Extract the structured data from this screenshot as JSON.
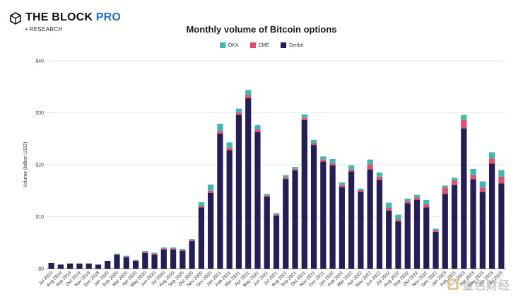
{
  "header": {
    "brand": "THE BLOCK",
    "brand_pro": "PRO",
    "sub": "• RESEARCH"
  },
  "watermark": {
    "text": "金色财经"
  },
  "colors": {
    "okx": "#3fb8b0",
    "cme": "#e0506e",
    "deribit": "#241d57"
  },
  "chart_data": {
    "type": "bar",
    "stacked": true,
    "title": "Monthly volume of Bitcoin options",
    "xlabel": "",
    "ylabel": "Volume (billion USD)",
    "ylim": [
      0,
      40
    ],
    "yticks": [
      "$0",
      "$10",
      "$20",
      "$30",
      "$40"
    ],
    "legend_position": "top-center",
    "grid": "horizontal",
    "categories": [
      "Jul 2019",
      "Aug 2019",
      "Sep 2019",
      "Oct 2019",
      "Nov 2019",
      "Dec 2019",
      "Jan 2020",
      "Feb 2020",
      "Mar 2020",
      "Apr 2020",
      "May 2020",
      "Jun 2020",
      "Jul 2020",
      "Aug 2020",
      "Sep 2020",
      "Oct 2020",
      "Nov 2020",
      "Dec 2020",
      "Jan 2021",
      "Feb 2021",
      "Mar 2021",
      "Apr 2021",
      "May 2021",
      "Jun 2021",
      "Jul 2021",
      "Aug 2021",
      "Sep 2021",
      "Oct 2021",
      "Nov 2021",
      "Dec 2021",
      "Jan 2022",
      "Feb 2022",
      "Mar 2022",
      "Apr 2022",
      "May 2022",
      "Jun 2022",
      "Jul 2022",
      "Aug 2022",
      "Sep 2022",
      "Oct 2022",
      "Nov 2022",
      "Dec 2022",
      "Jan 2023",
      "Feb 2023",
      "Mar 2023",
      "Apr 2023",
      "May 2023",
      "Jun 2023",
      "Jul 2023"
    ],
    "series": [
      {
        "name": "Deribit",
        "values": [
          1.1,
          0.8,
          1.0,
          1.0,
          1.0,
          0.8,
          1.5,
          2.7,
          2.2,
          1.5,
          3.0,
          2.7,
          3.7,
          3.7,
          3.4,
          5.3,
          11.8,
          14.6,
          26.0,
          22.8,
          29.6,
          32.8,
          26.3,
          13.9,
          10.2,
          17.3,
          18.9,
          28.6,
          23.8,
          20.6,
          19.9,
          15.7,
          18.7,
          14.8,
          19.1,
          17.1,
          11.2,
          9.1,
          12.6,
          13.2,
          11.8,
          7.1,
          14.4,
          16.1,
          27.0,
          17.2,
          14.8,
          20.2,
          16.4
        ]
      },
      {
        "name": "CME",
        "values": [
          0,
          0,
          0,
          0,
          0,
          0,
          0,
          0.1,
          0.1,
          0.1,
          0.2,
          0.2,
          0.2,
          0.2,
          0.2,
          0.2,
          0.3,
          0.4,
          0.5,
          0.5,
          0.5,
          0.6,
          0.5,
          0.2,
          0.2,
          0.3,
          0.3,
          0.4,
          0.4,
          0.4,
          0.4,
          0.4,
          0.4,
          0.3,
          1.0,
          0.6,
          0.5,
          0.4,
          0.4,
          0.5,
          0.6,
          0.3,
          1.2,
          0.9,
          1.6,
          0.8,
          0.8,
          1.0,
          1.3
        ]
      },
      {
        "name": "OKX",
        "values": [
          0,
          0,
          0,
          0,
          0,
          0,
          0,
          0.1,
          0.2,
          0.1,
          0.2,
          0.2,
          0.2,
          0.2,
          0.2,
          0.2,
          0.7,
          1.2,
          1.4,
          1.0,
          0.7,
          1.0,
          0.8,
          0.3,
          0.3,
          0.4,
          0.4,
          0.7,
          0.6,
          0.6,
          0.8,
          0.5,
          0.8,
          0.3,
          0.9,
          0.8,
          1.0,
          0.9,
          0.5,
          0.5,
          0.8,
          0.3,
          0.4,
          0.5,
          1.0,
          1.2,
          1.2,
          1.2,
          1.3
        ]
      }
    ]
  }
}
